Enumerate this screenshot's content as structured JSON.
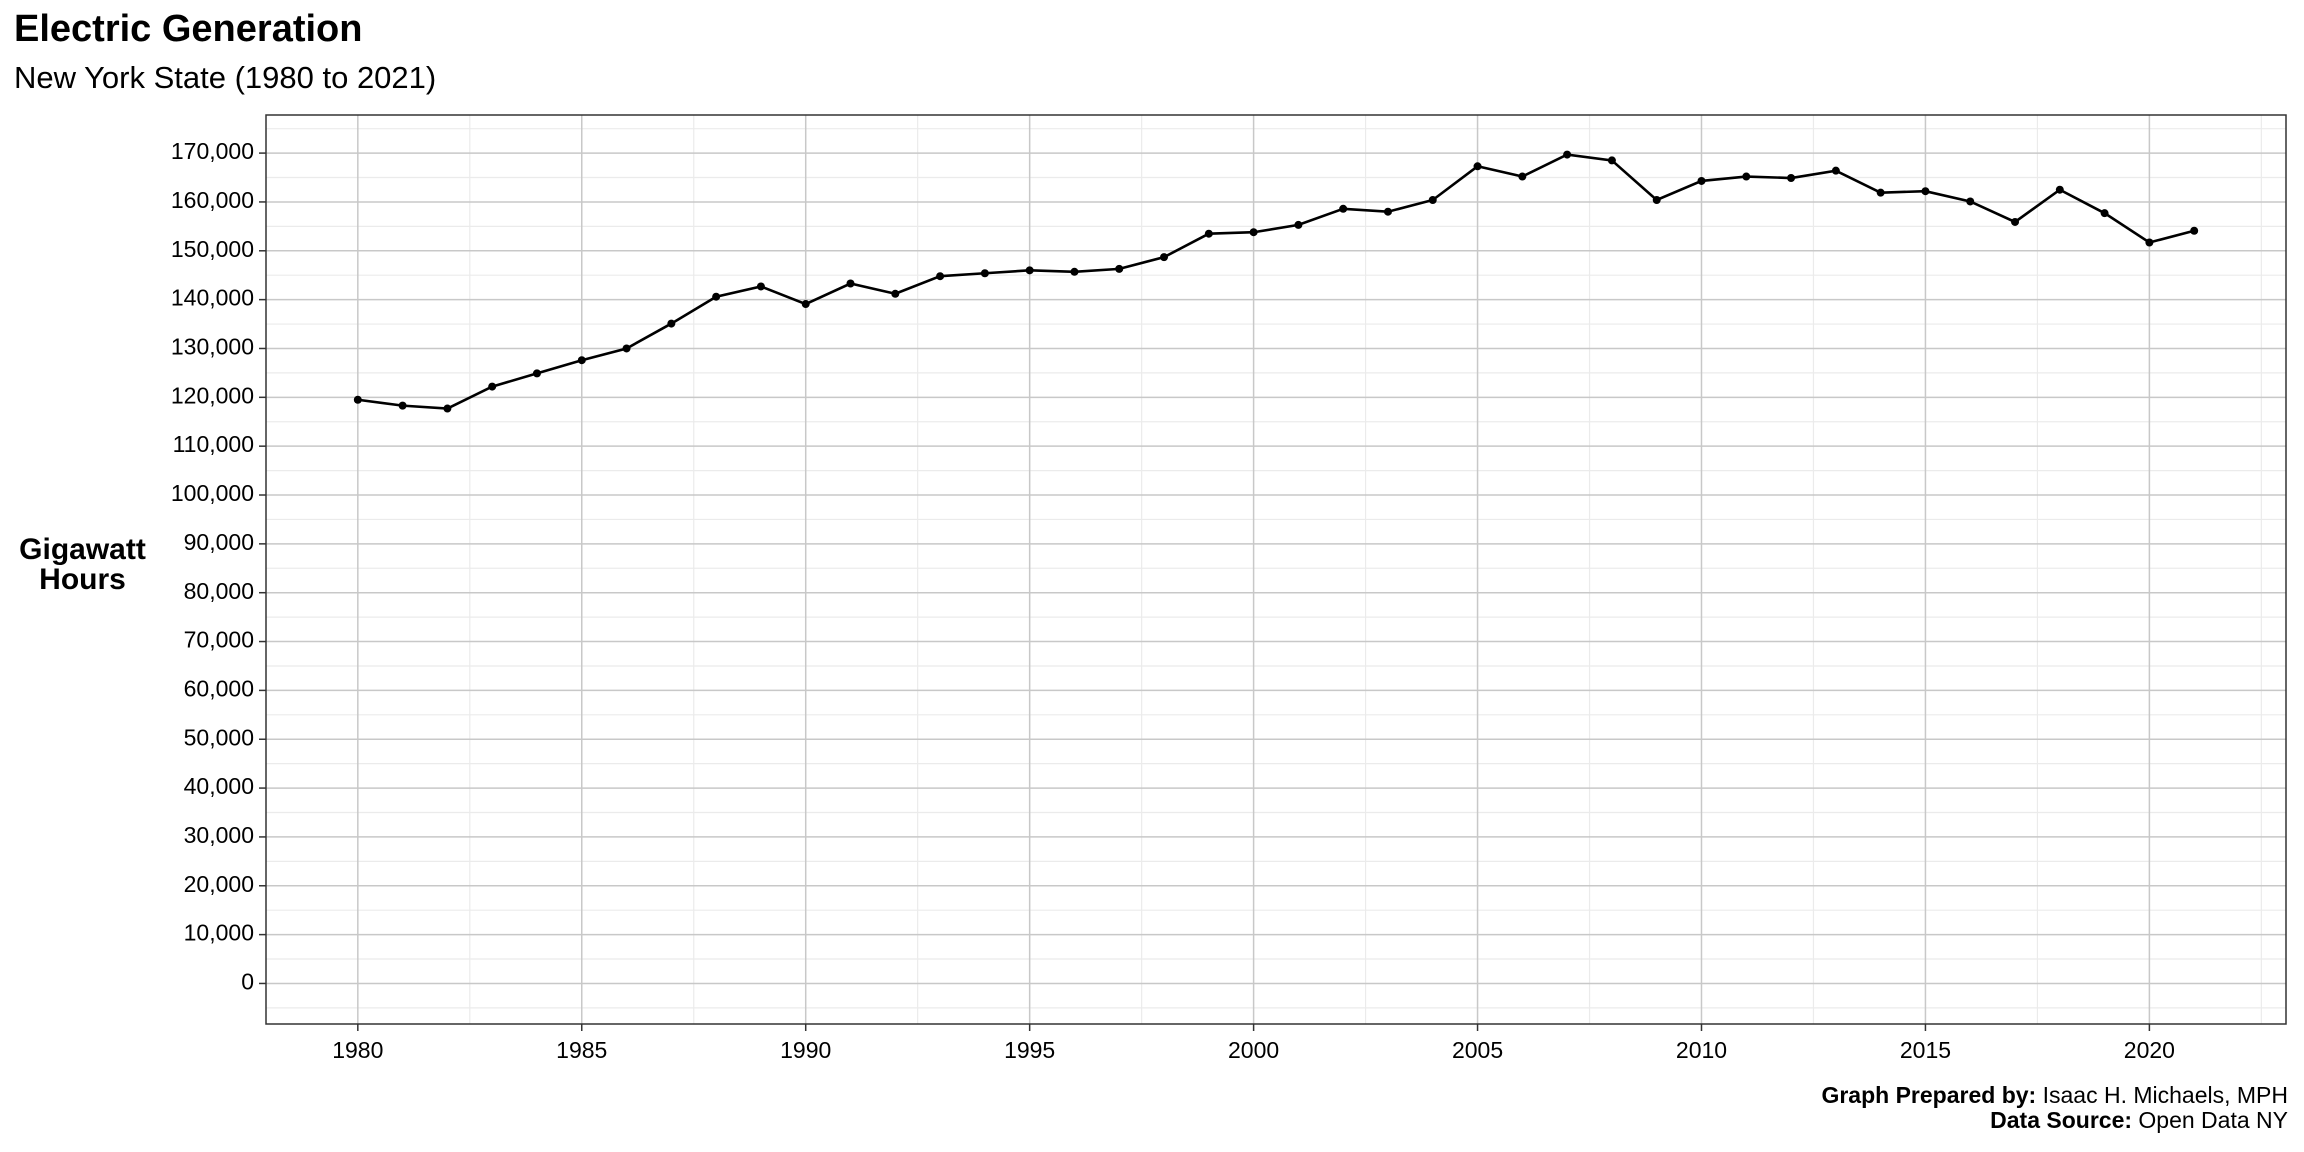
{
  "chart_data": {
    "type": "line",
    "title": "Electric Generation",
    "subtitle": "New York State (1980 to 2021)",
    "ylabel": "Gigawatt Hours",
    "caption_prepared_label": "Graph Prepared by:",
    "caption_prepared": "Isaac H. Michaels, MPH",
    "caption_source_label": "Data Source:",
    "caption_source": "Open Data NY",
    "color": "#000000",
    "x": [
      1980,
      1981,
      1982,
      1983,
      1984,
      1985,
      1986,
      1987,
      1988,
      1989,
      1990,
      1991,
      1992,
      1993,
      1994,
      1995,
      1996,
      1997,
      1998,
      1999,
      2000,
      2001,
      2002,
      2003,
      2004,
      2005,
      2006,
      2007,
      2008,
      2009,
      2010,
      2011,
      2012,
      2013,
      2014,
      2015,
      2016,
      2017,
      2018,
      2019,
      2020,
      2021
    ],
    "values": [
      119500,
      118300,
      117700,
      122200,
      124900,
      127600,
      130000,
      135100,
      140600,
      142700,
      139100,
      143300,
      141200,
      144800,
      145400,
      146000,
      145700,
      146300,
      148700,
      153500,
      153800,
      155300,
      158600,
      158000,
      160400,
      167300,
      165200,
      169700,
      168500,
      160400,
      164300,
      165200,
      164900,
      166400,
      161900,
      162200,
      160100,
      155900,
      162500,
      157700,
      151700,
      154100
    ],
    "xlim": [
      1977.95,
      2023.05
    ],
    "xticks": [
      1980,
      1985,
      1990,
      1995,
      2000,
      2005,
      2010,
      2015,
      2020
    ],
    "ylim": [
      -8300,
      177800
    ],
    "yticks": [
      0,
      {
        "value": 10000,
        "label": "10,000"
      },
      {
        "value": 20000,
        "label": "20,000"
      },
      {
        "value": 30000,
        "label": "30,000"
      },
      {
        "value": 40000,
        "label": "40,000"
      },
      {
        "value": 50000,
        "label": "50,000"
      },
      {
        "value": 60000,
        "label": "60,000"
      },
      {
        "value": 70000,
        "label": "70,000"
      },
      {
        "value": 80000,
        "label": "80,000"
      },
      {
        "value": 90000,
        "label": "90,000"
      },
      {
        "value": 100000,
        "label": "100,000"
      },
      {
        "value": 110000,
        "label": "110,000"
      },
      {
        "value": 120000,
        "label": "120,000"
      },
      {
        "value": 130000,
        "label": "130,000"
      },
      {
        "value": 140000,
        "label": "140,000"
      },
      {
        "value": 150000,
        "label": "150,000"
      },
      {
        "value": 160000,
        "label": "160,000"
      },
      {
        "value": 170000,
        "label": "170,000"
      }
    ],
    "grid": true,
    "minor_grid": true
  }
}
